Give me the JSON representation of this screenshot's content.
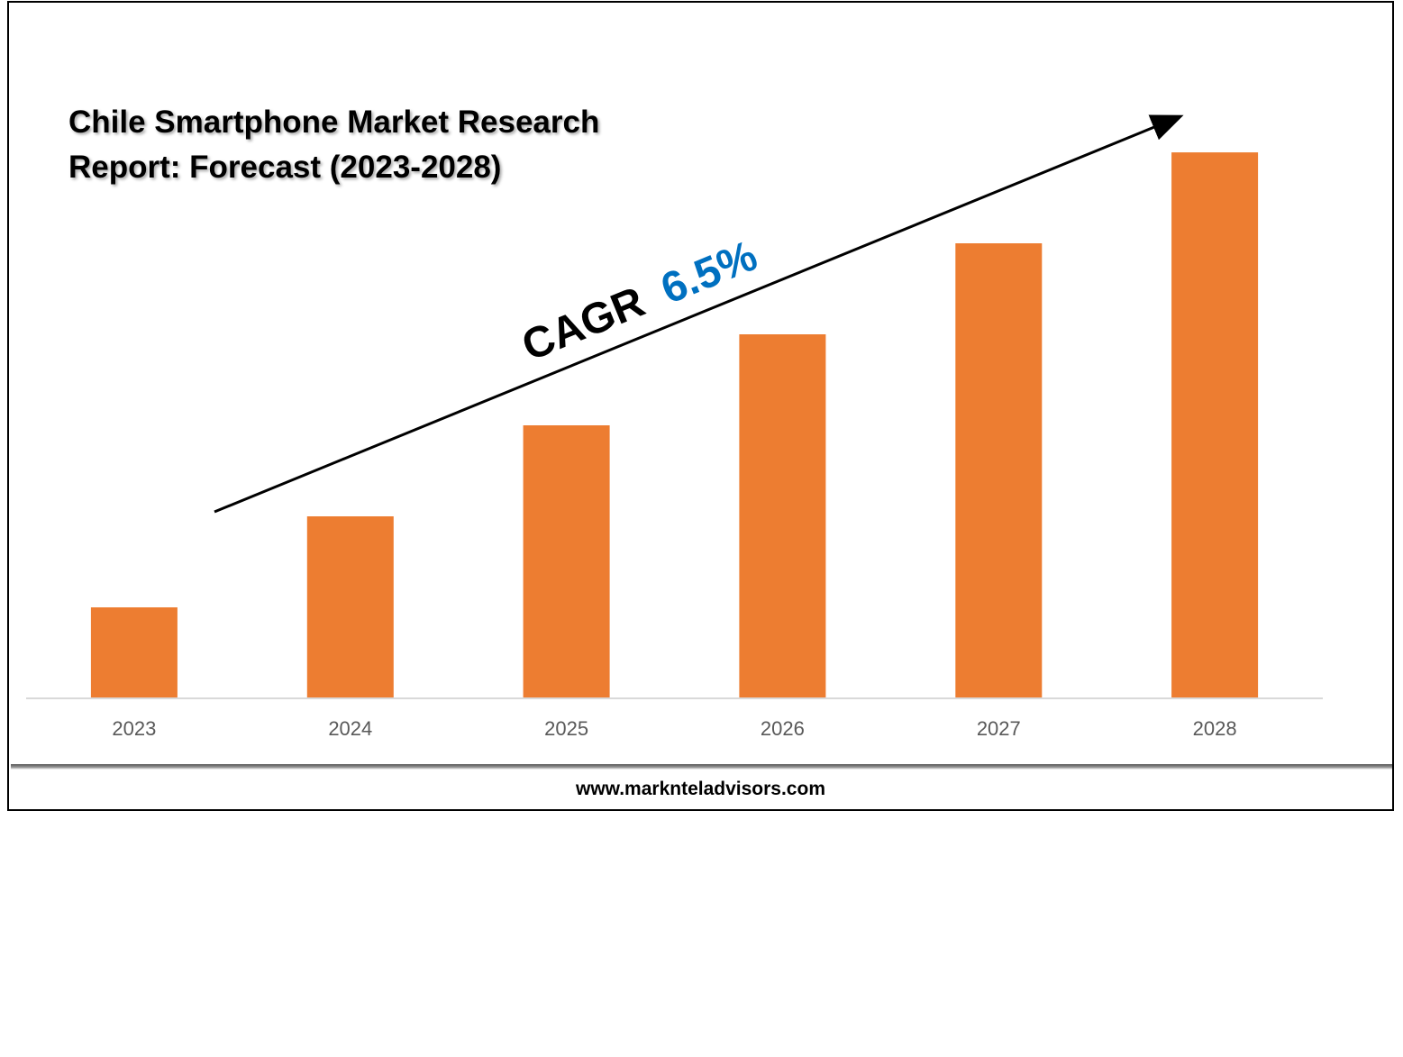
{
  "chart_data": {
    "type": "bar",
    "title_lines": [
      "Chile Smartphone Market Research",
      "Report: Forecast (2023-2028)"
    ],
    "categories": [
      "2023",
      "2024",
      "2025",
      "2026",
      "2027",
      "2028"
    ],
    "series": [
      {
        "values": [
          1.0,
          2.0,
          3.0,
          4.0,
          5.0,
          6.0
        ]
      }
    ],
    "values_note_hidden": null,
    "xlabel": "",
    "ylabel": "",
    "ylim": [
      0,
      6.06
    ],
    "grid": false,
    "legend": "none",
    "annotation": {
      "prefix": "CAGR",
      "value": "6.5%"
    },
    "colors": {
      "bar": "#ED7D31",
      "cagr_value": "#0070C0",
      "axis": "#D9D9D9",
      "tick_label": "#595959"
    }
  },
  "footer": {
    "url": "www.marknteladvisors.com"
  }
}
